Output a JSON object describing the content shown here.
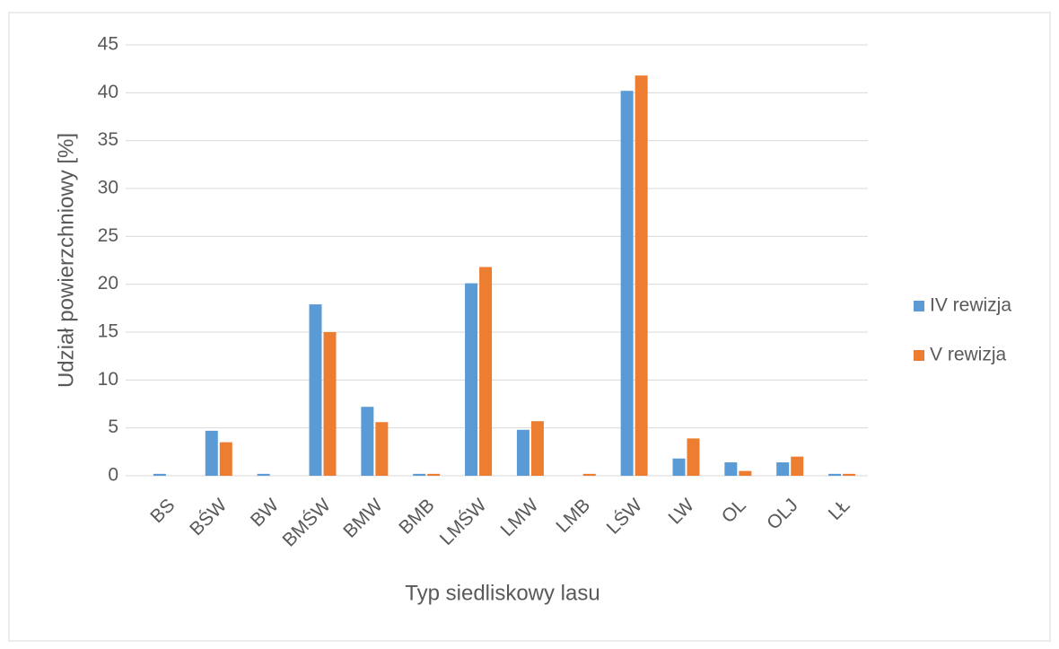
{
  "chart_data": {
    "type": "bar",
    "categories": [
      "BS",
      "BŚW",
      "BW",
      "BMŚW",
      "BMW",
      "BMB",
      "LMŚW",
      "LMW",
      "LMB",
      "LŚW",
      "LW",
      "OL",
      "OLJ",
      "LŁ"
    ],
    "series": [
      {
        "name": "IV rewizja",
        "color": "#5b9bd5",
        "values": [
          0.2,
          4.7,
          0.2,
          17.9,
          7.2,
          0.2,
          20.1,
          4.8,
          0,
          40.2,
          1.8,
          1.4,
          1.4,
          0.2
        ]
      },
      {
        "name": "V rewizja",
        "color": "#ed7d31",
        "values": [
          0,
          3.5,
          0,
          15.0,
          5.6,
          0.2,
          21.8,
          5.7,
          0.2,
          41.8,
          3.9,
          0.5,
          2.0,
          0.2
        ]
      }
    ],
    "ylim": [
      0,
      45
    ],
    "yticks": [
      0,
      5,
      10,
      15,
      20,
      25,
      30,
      35,
      40,
      45
    ],
    "grid": true,
    "xlabel": "Typ siedliskowy lasu",
    "ylabel": "Udział powierzchniowy [%]",
    "legend": "right"
  }
}
